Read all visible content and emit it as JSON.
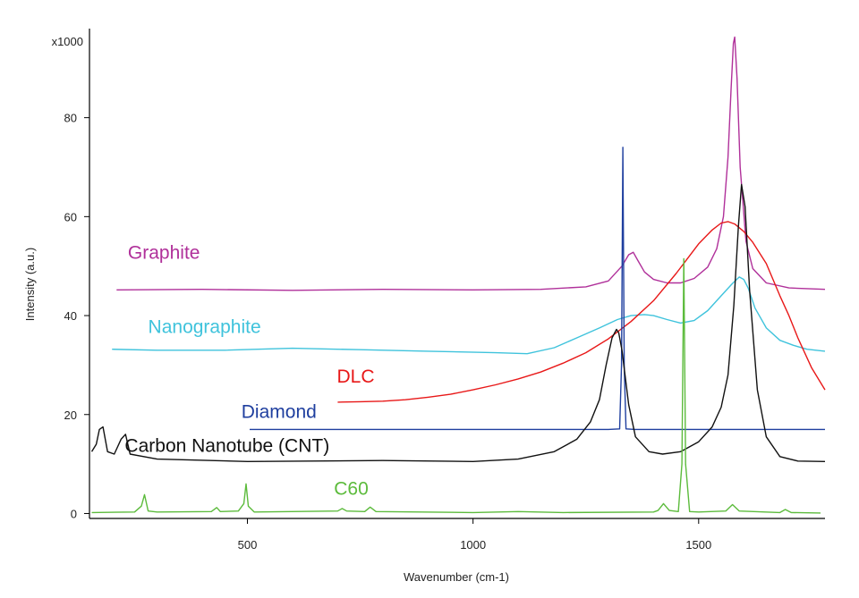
{
  "chart_data": {
    "type": "line",
    "xlabel": "Wavenumber (cm-1)",
    "ylabel": "Intensity (a.u.)",
    "y_multiplier_label": "x1000",
    "xlim": [
      150,
      1780
    ],
    "ylim": [
      -1,
      98
    ],
    "x_ticks": [
      500,
      1000,
      1500
    ],
    "y_ticks": [
      0,
      20,
      40,
      60,
      80
    ],
    "grid": false,
    "series": [
      {
        "name": "Graphite",
        "color": "#b0309a",
        "x": [
          210,
          400,
          600,
          800,
          1000,
          1150,
          1250,
          1300,
          1330,
          1345,
          1355,
          1365,
          1380,
          1400,
          1430,
          1460,
          1490,
          1520,
          1540,
          1555,
          1565,
          1572,
          1577,
          1580,
          1585,
          1592,
          1605,
          1620,
          1650,
          1700,
          1780
        ],
        "y": [
          45.2,
          45.3,
          45.1,
          45.3,
          45.2,
          45.3,
          45.8,
          47.0,
          50.0,
          52.3,
          52.8,
          51.2,
          48.8,
          47.3,
          46.6,
          46.6,
          47.5,
          49.8,
          53.5,
          60.0,
          72.0,
          86.0,
          95.0,
          96.3,
          88.0,
          70.0,
          55.0,
          49.5,
          46.6,
          45.6,
          45.3
        ]
      },
      {
        "name": "Nanographite",
        "color": "#3fc3dc",
        "x": [
          200,
          300,
          450,
          600,
          750,
          900,
          1050,
          1120,
          1180,
          1230,
          1280,
          1320,
          1350,
          1380,
          1400,
          1430,
          1460,
          1490,
          1520,
          1550,
          1575,
          1590,
          1600,
          1610,
          1625,
          1650,
          1680,
          1710,
          1740,
          1780
        ],
        "y": [
          33.2,
          33.0,
          33.0,
          33.4,
          33.1,
          32.8,
          32.5,
          32.3,
          33.5,
          35.5,
          37.5,
          39.2,
          40.0,
          40.2,
          40.0,
          39.2,
          38.5,
          39.0,
          41.0,
          44.0,
          46.5,
          47.8,
          47.3,
          45.5,
          41.5,
          37.5,
          35.0,
          34.0,
          33.2,
          32.8
        ]
      },
      {
        "name": "DLC",
        "color": "#e81818",
        "x": [
          700,
          750,
          800,
          850,
          900,
          950,
          1000,
          1050,
          1100,
          1150,
          1200,
          1250,
          1300,
          1350,
          1400,
          1450,
          1500,
          1530,
          1550,
          1565,
          1580,
          1600,
          1620,
          1650,
          1680,
          1700,
          1720,
          1750,
          1780
        ],
        "y": [
          22.5,
          22.6,
          22.7,
          23.0,
          23.5,
          24.1,
          25.0,
          26.0,
          27.2,
          28.6,
          30.4,
          32.5,
          35.3,
          38.8,
          43.0,
          48.5,
          54.5,
          57.3,
          58.7,
          59.0,
          58.5,
          57.0,
          54.8,
          50.5,
          44.0,
          40.0,
          35.5,
          29.5,
          25.0
        ]
      },
      {
        "name": "Diamond",
        "color": "#1f3f9f",
        "x": [
          505,
          800,
          1100,
          1300,
          1325,
          1329,
          1332,
          1335,
          1339,
          1360,
          1500,
          1700,
          1780
        ],
        "y": [
          17.0,
          17.0,
          17.0,
          17.0,
          17.1,
          30.0,
          74.0,
          30.0,
          17.1,
          17.0,
          17.0,
          17.0,
          17.0
        ]
      },
      {
        "name": "Carbon Nanotube (CNT)",
        "color": "#111111",
        "x": [
          155,
          165,
          172,
          180,
          190,
          205,
          220,
          230,
          240,
          300,
          500,
          800,
          1000,
          1100,
          1180,
          1230,
          1260,
          1280,
          1295,
          1308,
          1318,
          1323,
          1330,
          1345,
          1360,
          1390,
          1420,
          1460,
          1500,
          1530,
          1550,
          1565,
          1578,
          1588,
          1595,
          1603,
          1613,
          1630,
          1650,
          1680,
          1720,
          1780
        ],
        "y": [
          12.5,
          14.0,
          17.0,
          17.5,
          12.5,
          12.0,
          15.0,
          16.0,
          12.0,
          11.0,
          10.5,
          10.7,
          10.5,
          11.0,
          12.5,
          15.0,
          18.5,
          23.0,
          30.0,
          35.5,
          37.2,
          36.5,
          33.0,
          22.0,
          15.5,
          12.5,
          12.0,
          12.5,
          14.5,
          17.5,
          21.5,
          28.0,
          42.0,
          58.0,
          66.5,
          62.0,
          45.0,
          25.0,
          15.5,
          11.5,
          10.6,
          10.5
        ]
      },
      {
        "name": "C60",
        "color": "#5cbb3c",
        "x": [
          155,
          250,
          265,
          272,
          280,
          300,
          420,
          432,
          440,
          480,
          492,
          497,
          502,
          515,
          700,
          710,
          720,
          760,
          772,
          785,
          1000,
          1100,
          1200,
          1400,
          1410,
          1422,
          1435,
          1455,
          1463,
          1467,
          1471,
          1480,
          1500,
          1560,
          1575,
          1590,
          1680,
          1692,
          1705,
          1770
        ],
        "y": [
          0.2,
          0.3,
          1.5,
          3.8,
          0.5,
          0.3,
          0.4,
          1.2,
          0.4,
          0.5,
          2.0,
          6.0,
          1.5,
          0.3,
          0.5,
          1.0,
          0.5,
          0.4,
          1.3,
          0.4,
          0.2,
          0.4,
          0.2,
          0.3,
          0.6,
          2.0,
          0.6,
          0.4,
          10.0,
          51.5,
          10.0,
          0.4,
          0.3,
          0.5,
          1.8,
          0.5,
          0.2,
          0.8,
          0.2,
          0.1
        ]
      }
    ],
    "annotations": [
      {
        "text": "Graphite",
        "x": 315,
        "y": 51.5,
        "color": "#b0309a"
      },
      {
        "text": "Nanographite",
        "x": 405,
        "y": 36.5,
        "color": "#3fc3dc"
      },
      {
        "text": "DLC",
        "x": 740,
        "y": 26.5,
        "color": "#e81818"
      },
      {
        "text": "Diamond",
        "x": 570,
        "y": 19.3,
        "color": "#1f3f9f"
      },
      {
        "text": "Carbon Nanotube (CNT)",
        "x": 455,
        "y": 12.5,
        "color": "#111111"
      },
      {
        "text": "C60",
        "x": 730,
        "y": 3.8,
        "color": "#5cbb3c"
      }
    ]
  }
}
